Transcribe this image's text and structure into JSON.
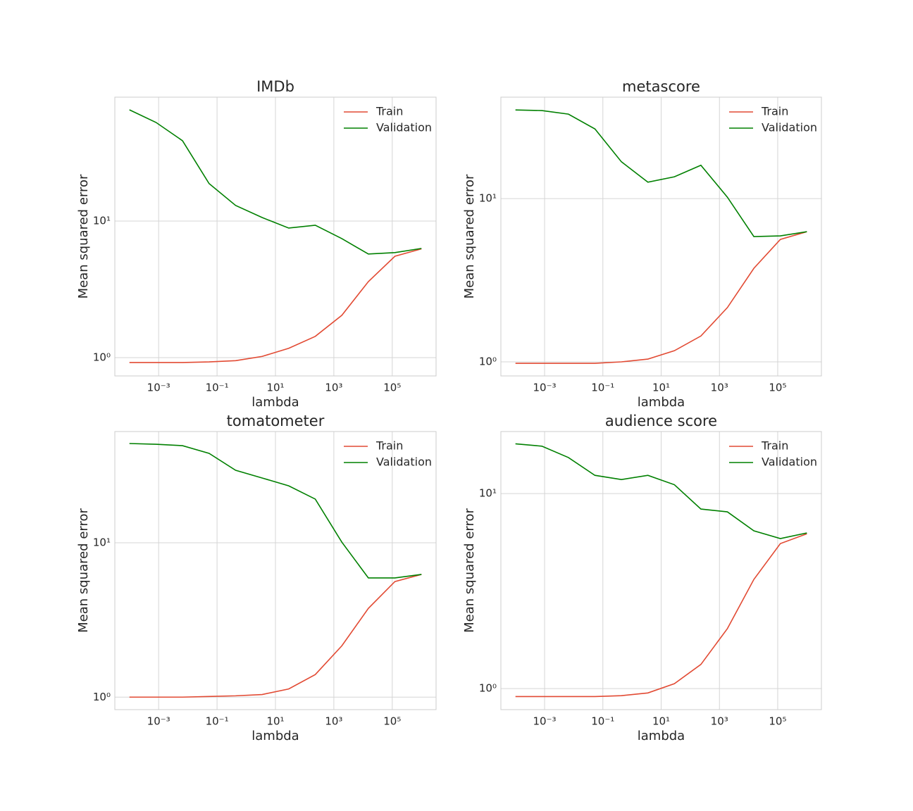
{
  "chart_data": [
    {
      "type": "line",
      "title": "IMDb",
      "xlabel": "lambda",
      "ylabel": "Mean squared error",
      "x": [
        0.0001,
        0.0008111,
        0.006579,
        0.05337,
        0.4329,
        3.511,
        28.48,
        231.0,
        1874,
        15199,
        123285,
        1000000
      ],
      "series": [
        {
          "name": "Train",
          "color": "#E24A33",
          "values": [
            0.92,
            0.92,
            0.92,
            0.93,
            0.95,
            1.02,
            1.17,
            1.43,
            2.04,
            3.6,
            5.52,
            6.25
          ]
        },
        {
          "name": "Validation",
          "color": "#008000",
          "values": [
            65.2,
            52.7,
            38.7,
            18.8,
            13.0,
            10.6,
            8.88,
            9.31,
            7.43,
            5.73,
            5.87,
            6.3
          ]
        }
      ],
      "xlim": [
        3.1623e-05,
        3162300.0
      ],
      "ylim": [
        0.734,
        80.7
      ],
      "xticks": [
        {
          "value": 0.001,
          "label": "10⁻³"
        },
        {
          "value": 0.1,
          "label": "10⁻¹"
        },
        {
          "value": 10,
          "label": "10¹"
        },
        {
          "value": 1000,
          "label": "10³"
        },
        {
          "value": 100000,
          "label": "10⁵"
        }
      ],
      "yticks": [
        {
          "value": 1,
          "label": "10⁰"
        },
        {
          "value": 10,
          "label": "10¹"
        }
      ],
      "xscale": "log",
      "yscale": "log",
      "grid": true,
      "legend": "upper right"
    },
    {
      "type": "line",
      "title": "metascore",
      "xlabel": "lambda",
      "ylabel": "Mean squared error",
      "x": [
        0.0001,
        0.0008111,
        0.006579,
        0.05337,
        0.4329,
        3.511,
        28.48,
        231.0,
        1874,
        15199,
        123285,
        1000000
      ],
      "series": [
        {
          "name": "Train",
          "color": "#E24A33",
          "values": [
            0.98,
            0.98,
            0.98,
            0.98,
            1.0,
            1.04,
            1.17,
            1.44,
            2.15,
            3.74,
            5.62,
            6.27
          ]
        },
        {
          "name": "Validation",
          "color": "#008000",
          "values": [
            34.9,
            34.6,
            32.9,
            26.7,
            16.8,
            12.6,
            13.6,
            16.0,
            10.2,
            5.85,
            5.91,
            6.27
          ]
        }
      ],
      "xlim": [
        3.1623e-05,
        3162300.0
      ],
      "ylim": [
        0.82,
        41.8
      ],
      "xticks": [
        {
          "value": 0.001,
          "label": "10⁻³"
        },
        {
          "value": 0.1,
          "label": "10⁻¹"
        },
        {
          "value": 10,
          "label": "10¹"
        },
        {
          "value": 1000,
          "label": "10³"
        },
        {
          "value": 100000,
          "label": "10⁵"
        }
      ],
      "yticks": [
        {
          "value": 1,
          "label": "10⁰"
        },
        {
          "value": 10,
          "label": "10¹"
        }
      ],
      "xscale": "log",
      "yscale": "log",
      "grid": true,
      "legend": "upper right"
    },
    {
      "type": "line",
      "title": "tomatometer",
      "xlabel": "lambda",
      "ylabel": "Mean squared error",
      "x": [
        0.0001,
        0.0008111,
        0.006579,
        0.05337,
        0.4329,
        3.511,
        28.48,
        231.0,
        1874,
        15199,
        123285,
        1000000
      ],
      "series": [
        {
          "name": "Train",
          "color": "#E24A33",
          "values": [
            1.0,
            1.0,
            1.0,
            1.01,
            1.02,
            1.04,
            1.13,
            1.4,
            2.15,
            3.76,
            5.61,
            6.24
          ]
        },
        {
          "name": "Validation",
          "color": "#008000",
          "values": [
            44.0,
            43.5,
            42.6,
            38.0,
            29.5,
            26.3,
            23.4,
            19.2,
            10.1,
            5.92,
            5.92,
            6.24
          ]
        }
      ],
      "xlim": [
        3.1623e-05,
        3162300.0
      ],
      "ylim": [
        0.83,
        52.6
      ],
      "xticks": [
        {
          "value": 0.001,
          "label": "10⁻³"
        },
        {
          "value": 0.1,
          "label": "10⁻¹"
        },
        {
          "value": 10,
          "label": "10¹"
        },
        {
          "value": 1000,
          "label": "10³"
        },
        {
          "value": 100000,
          "label": "10⁵"
        }
      ],
      "yticks": [
        {
          "value": 1,
          "label": "10⁰"
        },
        {
          "value": 10,
          "label": "10¹"
        }
      ],
      "xscale": "log",
      "yscale": "log",
      "grid": true,
      "legend": "upper right"
    },
    {
      "type": "line",
      "title": "audience score",
      "xlabel": "lambda",
      "ylabel": "Mean squared error",
      "x": [
        0.0001,
        0.0008111,
        0.006579,
        0.05337,
        0.4329,
        3.511,
        28.48,
        231.0,
        1874,
        15199,
        123285,
        1000000
      ],
      "series": [
        {
          "name": "Train",
          "color": "#E24A33",
          "values": [
            0.91,
            0.91,
            0.91,
            0.91,
            0.92,
            0.95,
            1.06,
            1.33,
            2.03,
            3.63,
            5.54,
            6.22
          ]
        },
        {
          "name": "Validation",
          "color": "#008000",
          "values": [
            18.0,
            17.5,
            15.3,
            12.4,
            11.8,
            12.4,
            11.1,
            8.33,
            8.06,
            6.44,
            5.88,
            6.28
          ]
        }
      ],
      "xlim": [
        3.1623e-05,
        3162300.0
      ],
      "ylim": [
        0.78,
        20.8
      ],
      "xticks": [
        {
          "value": 0.001,
          "label": "10⁻³"
        },
        {
          "value": 0.1,
          "label": "10⁻¹"
        },
        {
          "value": 10,
          "label": "10¹"
        },
        {
          "value": 1000,
          "label": "10³"
        },
        {
          "value": 100000,
          "label": "10⁵"
        }
      ],
      "yticks": [
        {
          "value": 1,
          "label": "10⁰"
        },
        {
          "value": 10,
          "label": "10¹"
        }
      ],
      "xscale": "log",
      "yscale": "log",
      "grid": true,
      "legend": "upper right"
    }
  ]
}
